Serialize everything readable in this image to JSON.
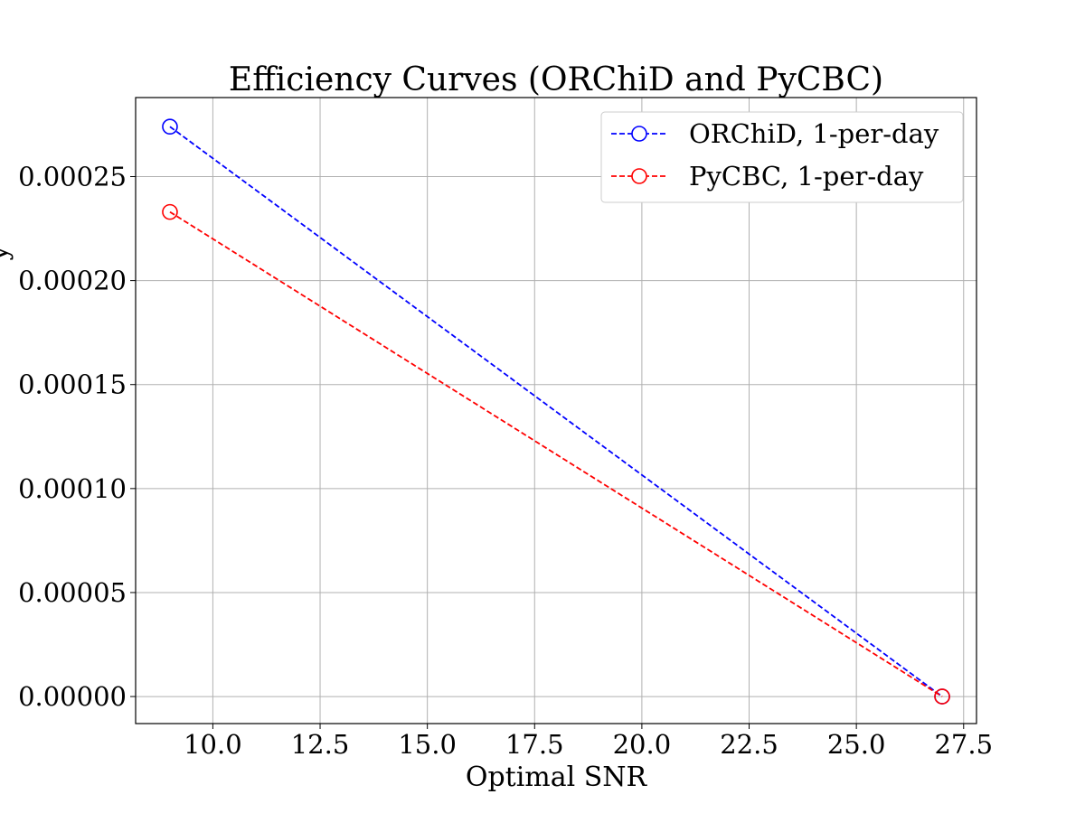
{
  "chart_data": {
    "type": "line",
    "title": "Efficiency Curves (ORChiD and PyCBC)",
    "xlabel": "Optimal SNR",
    "ylabel": "y",
    "xlim": [
      8.2,
      27.8
    ],
    "ylim": [
      -1.3e-05,
      0.000288
    ],
    "xticks": [
      10.0,
      12.5,
      15.0,
      17.5,
      20.0,
      22.5,
      25.0,
      27.5
    ],
    "xtick_labels": [
      "10.0",
      "12.5",
      "15.0",
      "17.5",
      "20.0",
      "22.5",
      "25.0",
      "27.5"
    ],
    "yticks": [
      0.0,
      5e-05,
      0.0001,
      0.00015,
      0.0002,
      0.00025
    ],
    "ytick_labels": [
      "0.00000",
      "0.00005",
      "0.00010",
      "0.00015",
      "0.00020",
      "0.00025"
    ],
    "grid": true,
    "legend_position": "top-right",
    "series": [
      {
        "name": "ORChiD, 1-per-day",
        "color": "#0000ff",
        "line_style": "dashed",
        "marker": "open-circle",
        "x": [
          9.0,
          27.0
        ],
        "y": [
          0.000274,
          0.0
        ]
      },
      {
        "name": "PyCBC, 1-per-day",
        "color": "#ff0000",
        "line_style": "dashed",
        "marker": "open-circle",
        "x": [
          9.0,
          27.0
        ],
        "y": [
          0.000233,
          0.0
        ]
      }
    ]
  }
}
